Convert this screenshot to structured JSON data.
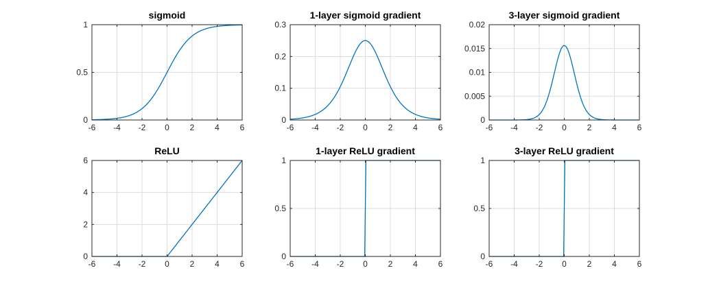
{
  "chart_data": [
    {
      "type": "line",
      "title": "sigmoid",
      "function": "sigmoid",
      "xlim": [
        -6,
        6
      ],
      "ylim": [
        0,
        1
      ],
      "xticks": [
        -6,
        -4,
        -2,
        0,
        2,
        4,
        6
      ],
      "xtick_labels": [
        "-6",
        "-4",
        "-2",
        "0",
        "2",
        "4",
        "6"
      ],
      "yticks": [
        0,
        0.5,
        1
      ],
      "ytick_labels": [
        "0",
        "0.5",
        "1"
      ],
      "grid": true
    },
    {
      "type": "line",
      "title": "1-layer sigmoid gradient",
      "function": "sigmoid_gradient_1",
      "xlim": [
        -6,
        6
      ],
      "ylim": [
        0,
        0.3
      ],
      "xticks": [
        -6,
        -4,
        -2,
        0,
        2,
        4,
        6
      ],
      "xtick_labels": [
        "-6",
        "-4",
        "-2",
        "0",
        "2",
        "4",
        "6"
      ],
      "yticks": [
        0,
        0.1,
        0.2,
        0.3
      ],
      "ytick_labels": [
        "0",
        "0.1",
        "0.2",
        "0.3"
      ],
      "grid": true
    },
    {
      "type": "line",
      "title": "3-layer sigmoid gradient",
      "function": "sigmoid_gradient_3",
      "xlim": [
        -6,
        6
      ],
      "ylim": [
        0,
        0.02
      ],
      "xticks": [
        -6,
        -4,
        -2,
        0,
        2,
        4,
        6
      ],
      "xtick_labels": [
        "-6",
        "-4",
        "-2",
        "0",
        "2",
        "4",
        "6"
      ],
      "yticks": [
        0,
        0.005,
        0.01,
        0.015,
        0.02
      ],
      "ytick_labels": [
        "0",
        "0.005",
        "0.01",
        "0.015",
        "0.02"
      ],
      "grid": true
    },
    {
      "type": "line",
      "title": "ReLU",
      "function": "relu",
      "xlim": [
        -6,
        6
      ],
      "ylim": [
        0,
        6
      ],
      "xticks": [
        -6,
        -4,
        -2,
        0,
        2,
        4,
        6
      ],
      "xtick_labels": [
        "-6",
        "-4",
        "-2",
        "0",
        "2",
        "4",
        "6"
      ],
      "yticks": [
        0,
        2,
        4,
        6
      ],
      "ytick_labels": [
        "0",
        "2",
        "4",
        "6"
      ],
      "grid": true
    },
    {
      "type": "line",
      "title": "1-layer ReLU gradient",
      "function": "relu_gradient",
      "xlim": [
        -6,
        6
      ],
      "ylim": [
        0,
        1
      ],
      "xticks": [
        -6,
        -4,
        -2,
        0,
        2,
        4,
        6
      ],
      "xtick_labels": [
        "-6",
        "-4",
        "-2",
        "0",
        "2",
        "4",
        "6"
      ],
      "yticks": [
        0,
        0.5,
        1
      ],
      "ytick_labels": [
        "0",
        "0.5",
        "1"
      ],
      "grid": true
    },
    {
      "type": "line",
      "title": "3-layer ReLU gradient",
      "function": "relu_gradient",
      "xlim": [
        -6,
        6
      ],
      "ylim": [
        0,
        1
      ],
      "xticks": [
        -6,
        -4,
        -2,
        0,
        2,
        4,
        6
      ],
      "xtick_labels": [
        "-6",
        "-4",
        "-2",
        "0",
        "2",
        "4",
        "6"
      ],
      "yticks": [
        0,
        0.5,
        1
      ],
      "ytick_labels": [
        "0",
        "0.5",
        "1"
      ],
      "grid": true
    }
  ]
}
